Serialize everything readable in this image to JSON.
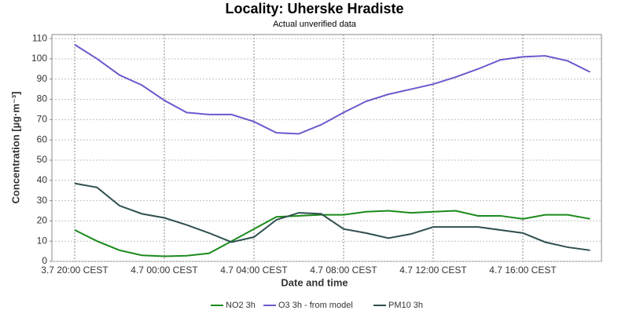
{
  "chart_data": {
    "type": "line",
    "title": "Locality: Uherske Hradiste",
    "subtitle": "Actual unverified data",
    "x_label": "Date and time",
    "y_label": "Concentration [µg·m⁻³]",
    "categories": [
      "3.7 20:00 CEST",
      null,
      null,
      null,
      "4.7 00:00 CEST",
      null,
      null,
      null,
      "4.7 04:00 CEST",
      null,
      null,
      null,
      "4.7 08:00 CEST",
      null,
      null,
      null,
      "4.7 12:00 CEST",
      null,
      null,
      null,
      "4.7 16:00 CEST",
      null,
      null,
      null
    ],
    "series": [
      {
        "name": "NO2 3h",
        "color": "#1a8a1a",
        "values": [
          15.5,
          10,
          5.5,
          3,
          2.5,
          2.8,
          4,
          10,
          16,
          22,
          22.5,
          23,
          23,
          24.5,
          25,
          24,
          24.5,
          25,
          22.5,
          22.5,
          21,
          23,
          23,
          21
        ]
      },
      {
        "name": "O3 3h - from model",
        "color": "#6a5acd",
        "values": [
          107,
          100,
          92,
          87,
          79.5,
          73.5,
          72.5,
          72.5,
          69,
          63.5,
          63,
          67.5,
          73.5,
          79,
          82.5,
          85,
          87.5,
          91,
          95,
          99.5,
          101,
          101.5,
          99,
          93.5
        ]
      },
      {
        "name": "PM10 3h",
        "color": "#2f4f4f",
        "values": [
          38.5,
          36.5,
          27.5,
          23.5,
          21.5,
          18,
          14,
          9.5,
          12,
          20.5,
          24,
          23.5,
          16,
          14,
          11.5,
          13.5,
          17,
          17,
          17,
          15.5,
          14,
          9.5,
          7,
          5.5
        ]
      }
    ],
    "ylim": [
      0,
      112
    ],
    "yticks": [
      0,
      10,
      20,
      30,
      40,
      50,
      60,
      70,
      80,
      90,
      100,
      110
    ],
    "grid": true,
    "legend": "bottom"
  }
}
